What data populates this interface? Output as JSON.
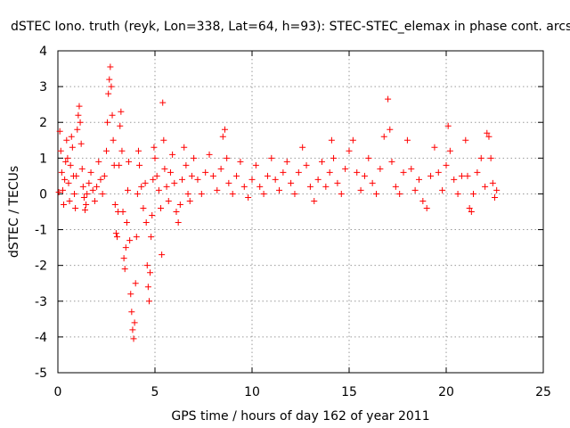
{
  "chart_data": {
    "type": "scatter",
    "title": "dSTEC Iono. truth (reyk, Lon=338, Lat=64, h=93): STEC-STEC_elemax in phase cont. arcs",
    "xlabel": "GPS time / hours of day 162 of year 2011",
    "ylabel": "dSTEC  / TECUs",
    "xlim": [
      0,
      25
    ],
    "ylim": [
      -5,
      4
    ],
    "xticks": [
      0,
      5,
      10,
      15,
      20,
      25
    ],
    "yticks": [
      -5,
      -4,
      -3,
      -2,
      -1,
      0,
      1,
      2,
      3,
      4
    ],
    "grid": true,
    "marker": "plus",
    "color": "#ff0000",
    "series": [
      {
        "name": "",
        "points": [
          [
            0.05,
            0.05
          ],
          [
            0.1,
            1.75
          ],
          [
            0.15,
            1.2
          ],
          [
            0.2,
            0.6
          ],
          [
            0.25,
            0.1
          ],
          [
            0.3,
            -0.3
          ],
          [
            0.35,
            0.4
          ],
          [
            0.4,
            0.9
          ],
          [
            0.45,
            1.5
          ],
          [
            0.5,
            1.0
          ],
          [
            0.55,
            0.3
          ],
          [
            0.6,
            -0.2
          ],
          [
            0.65,
            0.8
          ],
          [
            0.7,
            1.6
          ],
          [
            0.75,
            1.3
          ],
          [
            0.8,
            0.5
          ],
          [
            0.85,
            0.0
          ],
          [
            0.9,
            -0.4
          ],
          [
            0.95,
            0.5
          ],
          [
            1.0,
            1.8
          ],
          [
            1.05,
            2.2
          ],
          [
            1.1,
            2.45
          ],
          [
            1.15,
            2.0
          ],
          [
            1.2,
            1.4
          ],
          [
            1.25,
            0.7
          ],
          [
            1.3,
            0.2
          ],
          [
            1.35,
            -0.1
          ],
          [
            1.4,
            -0.45
          ],
          [
            1.45,
            -0.3
          ],
          [
            1.5,
            0.0
          ],
          [
            1.6,
            0.3
          ],
          [
            1.7,
            0.6
          ],
          [
            1.8,
            0.1
          ],
          [
            1.9,
            -0.2
          ],
          [
            2.0,
            0.2
          ],
          [
            2.1,
            0.9
          ],
          [
            2.2,
            0.4
          ],
          [
            2.3,
            0.0
          ],
          [
            2.4,
            0.5
          ],
          [
            2.5,
            1.2
          ],
          [
            2.55,
            2.0
          ],
          [
            2.6,
            2.8
          ],
          [
            2.65,
            3.2
          ],
          [
            2.7,
            3.55
          ],
          [
            2.75,
            3.0
          ],
          [
            2.8,
            2.2
          ],
          [
            2.85,
            1.5
          ],
          [
            2.9,
            0.8
          ],
          [
            2.95,
            -0.3
          ],
          [
            3.0,
            -1.1
          ],
          [
            3.05,
            -1.2
          ],
          [
            3.1,
            -0.5
          ],
          [
            3.15,
            0.8
          ],
          [
            3.2,
            1.9
          ],
          [
            3.25,
            2.3
          ],
          [
            3.3,
            1.2
          ],
          [
            3.35,
            -0.5
          ],
          [
            3.4,
            -1.8
          ],
          [
            3.45,
            -2.1
          ],
          [
            3.5,
            -1.5
          ],
          [
            3.55,
            -0.8
          ],
          [
            3.6,
            0.1
          ],
          [
            3.65,
            0.9
          ],
          [
            3.7,
            -1.3
          ],
          [
            3.75,
            -2.8
          ],
          [
            3.8,
            -3.3
          ],
          [
            3.85,
            -3.8
          ],
          [
            3.9,
            -4.05
          ],
          [
            3.95,
            -3.6
          ],
          [
            4.0,
            -2.5
          ],
          [
            4.05,
            -1.2
          ],
          [
            4.1,
            0.0
          ],
          [
            4.15,
            1.2
          ],
          [
            4.2,
            0.8
          ],
          [
            4.3,
            0.2
          ],
          [
            4.4,
            -0.4
          ],
          [
            4.5,
            0.3
          ],
          [
            4.55,
            -0.8
          ],
          [
            4.6,
            -2.0
          ],
          [
            4.65,
            -2.6
          ],
          [
            4.7,
            -3.0
          ],
          [
            4.75,
            -2.2
          ],
          [
            4.8,
            -1.2
          ],
          [
            4.85,
            -0.6
          ],
          [
            4.9,
            0.4
          ],
          [
            4.95,
            1.3
          ],
          [
            5.0,
            1.0
          ],
          [
            5.1,
            0.5
          ],
          [
            5.2,
            0.1
          ],
          [
            5.3,
            -0.4
          ],
          [
            5.35,
            -1.7
          ],
          [
            5.4,
            2.55
          ],
          [
            5.45,
            1.5
          ],
          [
            5.5,
            0.7
          ],
          [
            5.6,
            0.2
          ],
          [
            5.7,
            -0.2
          ],
          [
            5.8,
            0.6
          ],
          [
            5.9,
            1.1
          ],
          [
            6.0,
            0.3
          ],
          [
            6.1,
            -0.5
          ],
          [
            6.2,
            -0.8
          ],
          [
            6.3,
            -0.3
          ],
          [
            6.4,
            0.4
          ],
          [
            6.5,
            1.3
          ],
          [
            6.6,
            0.8
          ],
          [
            6.7,
            0.0
          ],
          [
            6.8,
            -0.2
          ],
          [
            6.9,
            0.5
          ],
          [
            7.0,
            1.0
          ],
          [
            7.2,
            0.4
          ],
          [
            7.4,
            0.0
          ],
          [
            7.6,
            0.6
          ],
          [
            7.8,
            1.1
          ],
          [
            8.0,
            0.5
          ],
          [
            8.2,
            0.1
          ],
          [
            8.4,
            0.7
          ],
          [
            8.5,
            1.6
          ],
          [
            8.6,
            1.8
          ],
          [
            8.7,
            1.0
          ],
          [
            8.8,
            0.3
          ],
          [
            9.0,
            0.0
          ],
          [
            9.2,
            0.5
          ],
          [
            9.4,
            0.9
          ],
          [
            9.6,
            0.2
          ],
          [
            9.8,
            -0.1
          ],
          [
            10.0,
            0.4
          ],
          [
            10.2,
            0.8
          ],
          [
            10.4,
            0.2
          ],
          [
            10.6,
            0.0
          ],
          [
            10.8,
            0.5
          ],
          [
            11.0,
            1.0
          ],
          [
            11.2,
            0.4
          ],
          [
            11.4,
            0.1
          ],
          [
            11.6,
            0.6
          ],
          [
            11.8,
            0.9
          ],
          [
            12.0,
            0.3
          ],
          [
            12.2,
            0.0
          ],
          [
            12.4,
            0.6
          ],
          [
            12.6,
            1.3
          ],
          [
            12.8,
            0.8
          ],
          [
            13.0,
            0.2
          ],
          [
            13.2,
            -0.2
          ],
          [
            13.4,
            0.4
          ],
          [
            13.6,
            0.9
          ],
          [
            13.8,
            0.2
          ],
          [
            14.0,
            0.6
          ],
          [
            14.1,
            1.5
          ],
          [
            14.2,
            1.0
          ],
          [
            14.4,
            0.3
          ],
          [
            14.6,
            0.0
          ],
          [
            14.8,
            0.7
          ],
          [
            15.0,
            1.2
          ],
          [
            15.2,
            1.5
          ],
          [
            15.4,
            0.6
          ],
          [
            15.6,
            0.1
          ],
          [
            15.8,
            0.5
          ],
          [
            16.0,
            1.0
          ],
          [
            16.2,
            0.3
          ],
          [
            16.4,
            0.0
          ],
          [
            16.6,
            0.7
          ],
          [
            16.8,
            1.6
          ],
          [
            17.0,
            2.65
          ],
          [
            17.1,
            1.8
          ],
          [
            17.2,
            0.9
          ],
          [
            17.4,
            0.2
          ],
          [
            17.6,
            0.0
          ],
          [
            17.8,
            0.6
          ],
          [
            18.0,
            1.5
          ],
          [
            18.2,
            0.7
          ],
          [
            18.4,
            0.1
          ],
          [
            18.6,
            0.4
          ],
          [
            18.8,
            -0.2
          ],
          [
            19.0,
            -0.4
          ],
          [
            19.2,
            0.5
          ],
          [
            19.4,
            1.3
          ],
          [
            19.6,
            0.6
          ],
          [
            19.8,
            0.1
          ],
          [
            20.0,
            0.8
          ],
          [
            20.1,
            1.9
          ],
          [
            20.2,
            1.2
          ],
          [
            20.4,
            0.4
          ],
          [
            20.6,
            0.0
          ],
          [
            20.8,
            0.5
          ],
          [
            21.0,
            1.5
          ],
          [
            21.1,
            0.5
          ],
          [
            21.2,
            -0.4
          ],
          [
            21.3,
            -0.5
          ],
          [
            21.4,
            0.0
          ],
          [
            21.6,
            0.6
          ],
          [
            21.8,
            1.0
          ],
          [
            22.0,
            0.2
          ],
          [
            22.1,
            1.7
          ],
          [
            22.2,
            1.6
          ],
          [
            22.3,
            1.0
          ],
          [
            22.4,
            0.3
          ],
          [
            22.5,
            -0.1
          ],
          [
            22.6,
            0.1
          ]
        ]
      }
    ]
  }
}
